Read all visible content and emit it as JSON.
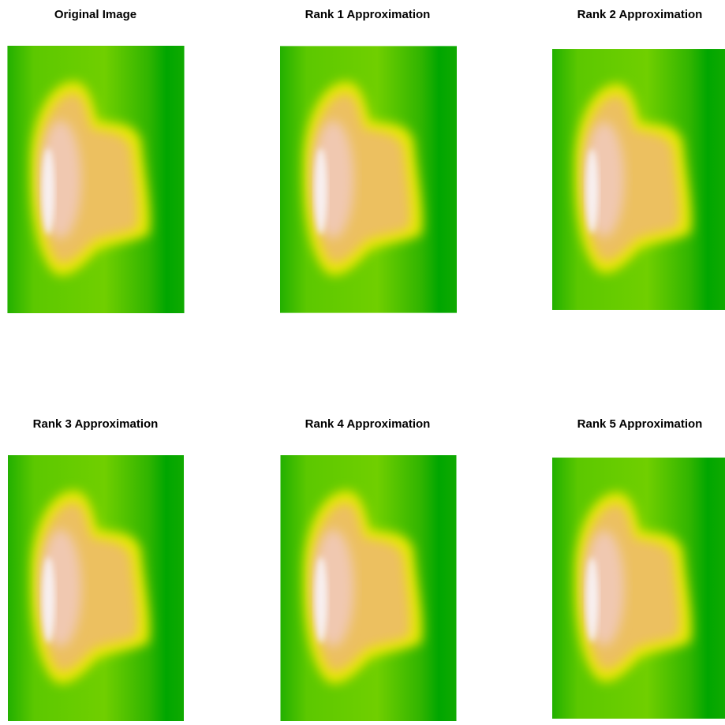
{
  "panels": [
    {
      "title": "Original Image"
    },
    {
      "title": "Rank 1 Approximation"
    },
    {
      "title": "Rank 2 Approximation"
    },
    {
      "title": "Rank 3 Approximation"
    },
    {
      "title": "Rank 4 Approximation"
    },
    {
      "title": "Rank 5 Approximation"
    }
  ]
}
